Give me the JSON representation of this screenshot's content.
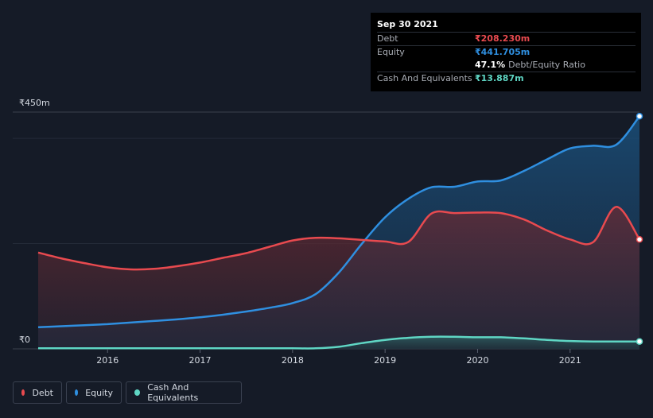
{
  "tooltip": {
    "date": "Sep 30 2021",
    "rows": [
      {
        "label": "Debt",
        "value": "₹208.230m",
        "color": "#e84a4f"
      },
      {
        "label": "Equity",
        "value": "₹441.705m",
        "color": "#2f8fe0"
      },
      {
        "label": "",
        "value": "47.1%",
        "extra": "Debt/Equity Ratio",
        "color": "#ffffff"
      },
      {
        "label": "Cash And Equivalents",
        "value": "₹13.887m",
        "color": "#5fd6c4"
      }
    ]
  },
  "legend": [
    {
      "label": "Debt",
      "color": "#e84a4f"
    },
    {
      "label": "Equity",
      "color": "#2f8fe0"
    },
    {
      "label": "Cash And Equivalents",
      "color": "#5fd6c4"
    }
  ],
  "chart_data": {
    "type": "area",
    "title": "",
    "xlabel": "",
    "ylabel": "",
    "ylim": [
      0,
      450
    ],
    "y_tick_labels": [
      {
        "value": 450,
        "label": "₹450m"
      },
      {
        "value": 0,
        "label": "₹0"
      }
    ],
    "x_ticks": [
      2016,
      2017,
      2018,
      2019,
      2020,
      2021
    ],
    "x_range": [
      2015.25,
      2021.75
    ],
    "series": [
      {
        "name": "Debt",
        "color": "#e84a4f",
        "points": [
          [
            2015.25,
            183
          ],
          [
            2015.5,
            172
          ],
          [
            2015.75,
            163
          ],
          [
            2016.0,
            155
          ],
          [
            2016.25,
            151
          ],
          [
            2016.5,
            152
          ],
          [
            2016.75,
            157
          ],
          [
            2017.0,
            164
          ],
          [
            2017.25,
            173
          ],
          [
            2017.5,
            182
          ],
          [
            2017.75,
            194
          ],
          [
            2018.0,
            206
          ],
          [
            2018.25,
            211
          ],
          [
            2018.5,
            210
          ],
          [
            2018.75,
            207
          ],
          [
            2019.0,
            204
          ],
          [
            2019.25,
            203
          ],
          [
            2019.5,
            257
          ],
          [
            2019.75,
            258
          ],
          [
            2020.0,
            259
          ],
          [
            2020.25,
            258
          ],
          [
            2020.5,
            246
          ],
          [
            2020.75,
            225
          ],
          [
            2021.0,
            208
          ],
          [
            2021.25,
            203
          ],
          [
            2021.5,
            270
          ],
          [
            2021.75,
            208
          ]
        ]
      },
      {
        "name": "Equity",
        "color": "#2f8fe0",
        "points": [
          [
            2015.25,
            41
          ],
          [
            2015.5,
            43
          ],
          [
            2015.75,
            45
          ],
          [
            2016.0,
            47
          ],
          [
            2016.25,
            50
          ],
          [
            2016.5,
            53
          ],
          [
            2016.75,
            56
          ],
          [
            2017.0,
            60
          ],
          [
            2017.25,
            65
          ],
          [
            2017.5,
            71
          ],
          [
            2017.75,
            78
          ],
          [
            2018.0,
            87
          ],
          [
            2018.25,
            104
          ],
          [
            2018.5,
            145
          ],
          [
            2018.75,
            200
          ],
          [
            2019.0,
            250
          ],
          [
            2019.25,
            285
          ],
          [
            2019.5,
            307
          ],
          [
            2019.75,
            308
          ],
          [
            2020.0,
            318
          ],
          [
            2020.25,
            320
          ],
          [
            2020.5,
            338
          ],
          [
            2020.75,
            360
          ],
          [
            2021.0,
            381
          ],
          [
            2021.25,
            386
          ],
          [
            2021.5,
            388
          ],
          [
            2021.75,
            442
          ]
        ]
      },
      {
        "name": "Cash And Equivalents",
        "color": "#5fd6c4",
        "points": [
          [
            2015.25,
            1
          ],
          [
            2015.5,
            1
          ],
          [
            2015.75,
            1
          ],
          [
            2016.0,
            1
          ],
          [
            2016.25,
            1
          ],
          [
            2016.5,
            1
          ],
          [
            2016.75,
            1
          ],
          [
            2017.0,
            1
          ],
          [
            2017.25,
            1
          ],
          [
            2017.5,
            1
          ],
          [
            2017.75,
            1
          ],
          [
            2018.0,
            1
          ],
          [
            2018.25,
            1
          ],
          [
            2018.5,
            4
          ],
          [
            2018.75,
            11
          ],
          [
            2019.0,
            17
          ],
          [
            2019.25,
            21
          ],
          [
            2019.5,
            23
          ],
          [
            2019.75,
            23
          ],
          [
            2020.0,
            22
          ],
          [
            2020.25,
            22
          ],
          [
            2020.5,
            20
          ],
          [
            2020.75,
            17
          ],
          [
            2021.0,
            15
          ],
          [
            2021.25,
            14
          ],
          [
            2021.5,
            14
          ],
          [
            2021.75,
            14
          ]
        ]
      }
    ]
  }
}
